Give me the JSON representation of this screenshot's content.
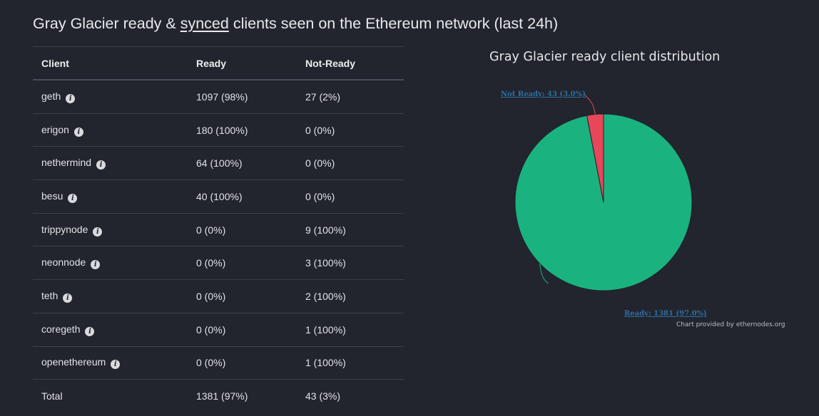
{
  "heading": {
    "prefix": "Gray Glacier ready & ",
    "synced_link": "synced",
    "suffix": " clients seen on the Ethereum network (last 24h)"
  },
  "table": {
    "headers": {
      "client": "Client",
      "ready": "Ready",
      "not_ready": "Not-Ready"
    },
    "rows": [
      {
        "client": "geth",
        "ready": "1097 (98%)",
        "not_ready": "27 (2%)"
      },
      {
        "client": "erigon",
        "ready": "180 (100%)",
        "not_ready": "0 (0%)"
      },
      {
        "client": "nethermind",
        "ready": "64 (100%)",
        "not_ready": "0 (0%)"
      },
      {
        "client": "besu",
        "ready": "40 (100%)",
        "not_ready": "0 (0%)"
      },
      {
        "client": "trippynode",
        "ready": "0 (0%)",
        "not_ready": "9 (100%)"
      },
      {
        "client": "neonnode",
        "ready": "0 (0%)",
        "not_ready": "3 (100%)"
      },
      {
        "client": "teth",
        "ready": "0 (0%)",
        "not_ready": "2 (100%)"
      },
      {
        "client": "coregeth",
        "ready": "0 (0%)",
        "not_ready": "1 (100%)"
      },
      {
        "client": "openethereum",
        "ready": "0 (0%)",
        "not_ready": "1 (100%)"
      }
    ],
    "total": {
      "label": "Total",
      "ready": "1381 (97%)",
      "not_ready": "43 (3%)"
    },
    "info_icon": "info-circle-icon"
  },
  "chart": {
    "title": "Gray Glacier ready client distribution",
    "credit": "Chart provided by ethernodes.org",
    "label_ready": "Ready: 1381 (97.0%)",
    "label_not_ready": "Not Ready: 43 (3.0%)",
    "colors": {
      "ready": "#1ab37f",
      "not_ready": "#e8475a",
      "label": "#2a6fa3"
    }
  },
  "chart_data": {
    "type": "pie",
    "title": "Gray Glacier ready client distribution",
    "categories": [
      "Ready",
      "Not Ready"
    ],
    "values": [
      1381,
      43
    ],
    "percentages": [
      97.0,
      3.0
    ]
  }
}
